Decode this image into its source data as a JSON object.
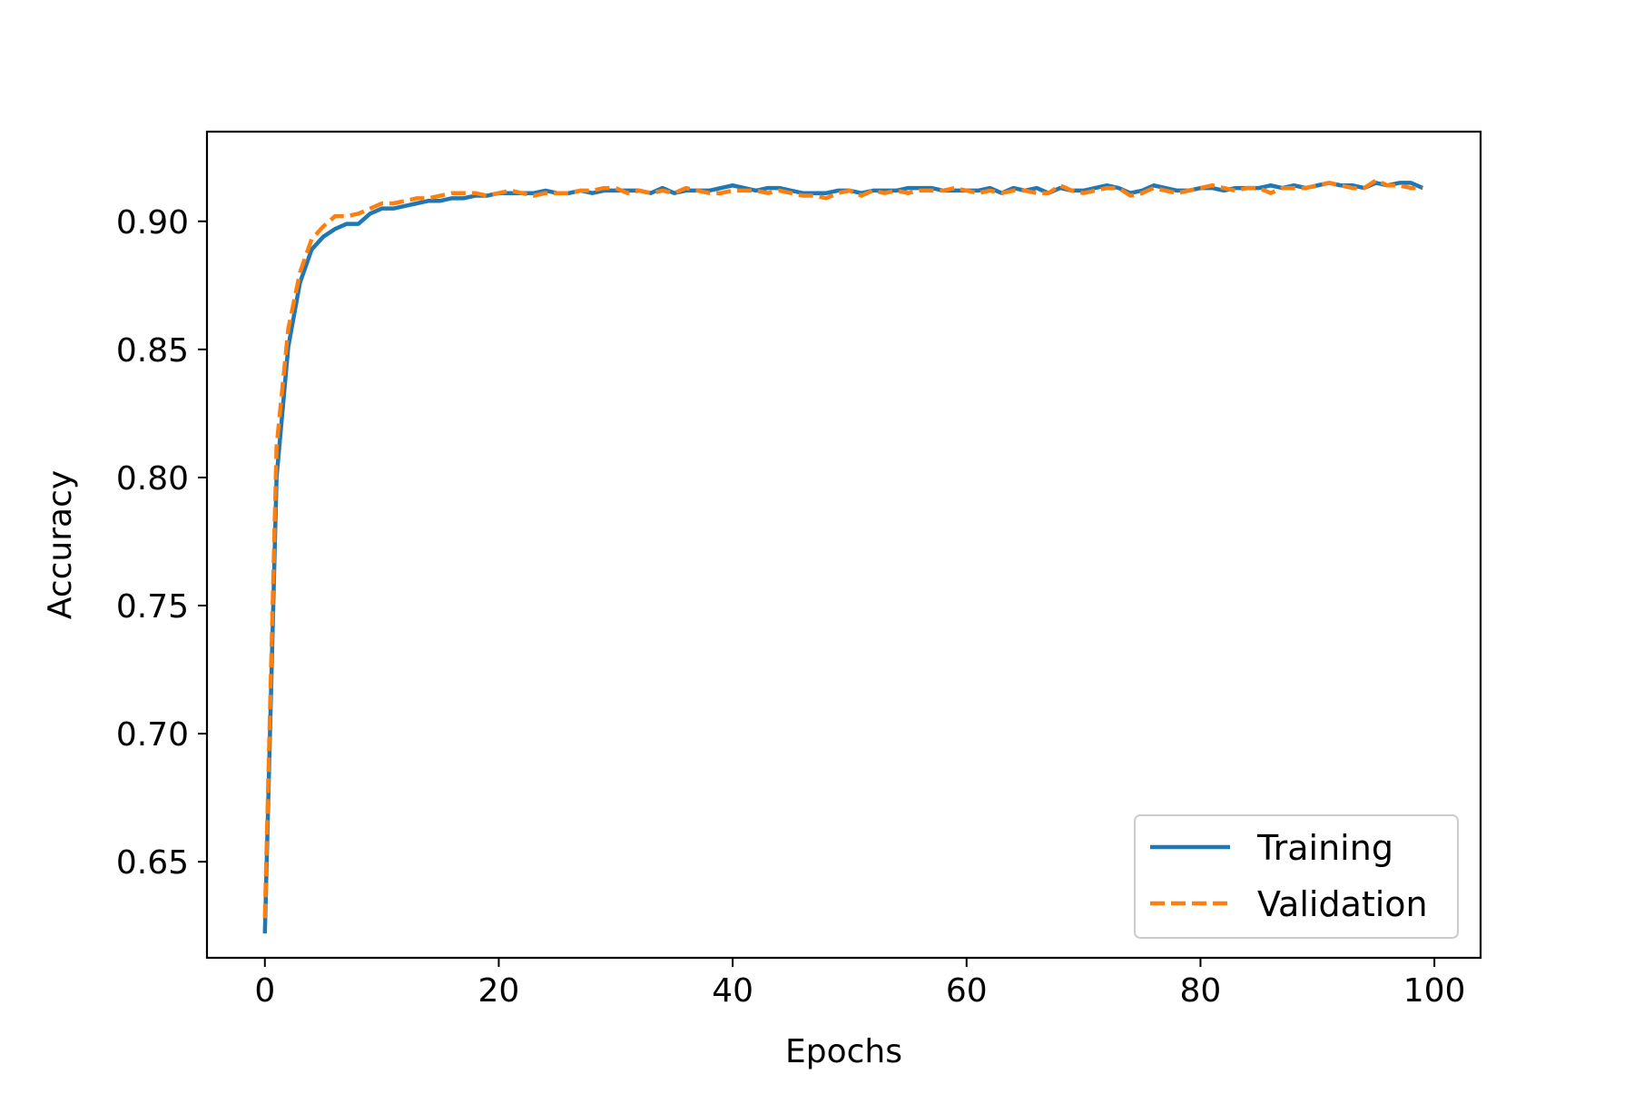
{
  "chart_data": {
    "type": "line",
    "title": "",
    "xlabel": "Epochs",
    "ylabel": "Accuracy",
    "xlim": [
      -4.95,
      103.95
    ],
    "ylim": [
      0.6125,
      0.935
    ],
    "xticks": [
      0,
      20,
      40,
      60,
      80,
      100
    ],
    "xtick_labels": [
      "0",
      "20",
      "40",
      "60",
      "80",
      "100"
    ],
    "yticks": [
      0.65,
      0.7,
      0.75,
      0.8,
      0.85,
      0.9
    ],
    "ytick_labels": [
      "0.65",
      "0.70",
      "0.75",
      "0.80",
      "0.85",
      "0.90"
    ],
    "grid": false,
    "legend_position": "lower-right",
    "x": [
      0,
      1,
      2,
      3,
      4,
      5,
      6,
      7,
      8,
      9,
      10,
      11,
      12,
      13,
      14,
      15,
      16,
      17,
      18,
      19,
      20,
      21,
      22,
      23,
      24,
      25,
      26,
      27,
      28,
      29,
      30,
      31,
      32,
      33,
      34,
      35,
      36,
      37,
      38,
      39,
      40,
      41,
      42,
      43,
      44,
      45,
      46,
      47,
      48,
      49,
      50,
      51,
      52,
      53,
      54,
      55,
      56,
      57,
      58,
      59,
      60,
      61,
      62,
      63,
      64,
      65,
      66,
      67,
      68,
      69,
      70,
      71,
      72,
      73,
      74,
      75,
      76,
      77,
      78,
      79,
      80,
      81,
      82,
      83,
      84,
      85,
      86,
      87,
      88,
      89,
      90,
      91,
      92,
      93,
      94,
      95,
      96,
      97,
      98,
      99
    ],
    "series": [
      {
        "name": "Training",
        "color": "#1f77b4",
        "dash": "solid",
        "values": [
          0.622,
          0.8,
          0.851,
          0.876,
          0.889,
          0.894,
          0.897,
          0.899,
          0.899,
          0.903,
          0.905,
          0.905,
          0.906,
          0.907,
          0.908,
          0.908,
          0.909,
          0.909,
          0.91,
          0.91,
          0.911,
          0.911,
          0.911,
          0.911,
          0.912,
          0.911,
          0.911,
          0.912,
          0.911,
          0.912,
          0.912,
          0.912,
          0.912,
          0.911,
          0.913,
          0.911,
          0.912,
          0.912,
          0.912,
          0.913,
          0.914,
          0.913,
          0.912,
          0.913,
          0.913,
          0.912,
          0.911,
          0.911,
          0.911,
          0.912,
          0.912,
          0.911,
          0.912,
          0.912,
          0.912,
          0.913,
          0.913,
          0.913,
          0.912,
          0.912,
          0.912,
          0.912,
          0.913,
          0.911,
          0.913,
          0.912,
          0.913,
          0.911,
          0.913,
          0.912,
          0.912,
          0.913,
          0.914,
          0.913,
          0.911,
          0.912,
          0.914,
          0.913,
          0.912,
          0.912,
          0.913,
          0.913,
          0.912,
          0.913,
          0.913,
          0.913,
          0.914,
          0.913,
          0.914,
          0.913,
          0.914,
          0.915,
          0.914,
          0.914,
          0.913,
          0.915,
          0.914,
          0.915,
          0.915,
          0.913
        ]
      },
      {
        "name": "Validation",
        "color": "#ff7f0e",
        "dash": "dashed",
        "values": [
          0.628,
          0.812,
          0.858,
          0.88,
          0.893,
          0.898,
          0.902,
          0.902,
          0.903,
          0.905,
          0.907,
          0.907,
          0.908,
          0.909,
          0.909,
          0.91,
          0.911,
          0.911,
          0.911,
          0.91,
          0.911,
          0.912,
          0.911,
          0.91,
          0.911,
          0.911,
          0.911,
          0.912,
          0.912,
          0.913,
          0.913,
          0.911,
          0.912,
          0.911,
          0.912,
          0.911,
          0.913,
          0.912,
          0.911,
          0.911,
          0.912,
          0.912,
          0.912,
          0.911,
          0.912,
          0.911,
          0.91,
          0.91,
          0.909,
          0.911,
          0.912,
          0.91,
          0.912,
          0.911,
          0.912,
          0.911,
          0.912,
          0.912,
          0.912,
          0.913,
          0.912,
          0.911,
          0.912,
          0.911,
          0.912,
          0.912,
          0.911,
          0.911,
          0.914,
          0.912,
          0.911,
          0.912,
          0.913,
          0.913,
          0.91,
          0.911,
          0.913,
          0.912,
          0.911,
          0.912,
          0.913,
          0.914,
          0.913,
          0.912,
          0.913,
          0.913,
          0.911,
          0.913,
          0.913,
          0.913,
          0.914,
          0.915,
          0.914,
          0.913,
          0.913,
          0.916,
          0.914,
          0.914,
          0.913,
          0.913
        ]
      }
    ]
  }
}
